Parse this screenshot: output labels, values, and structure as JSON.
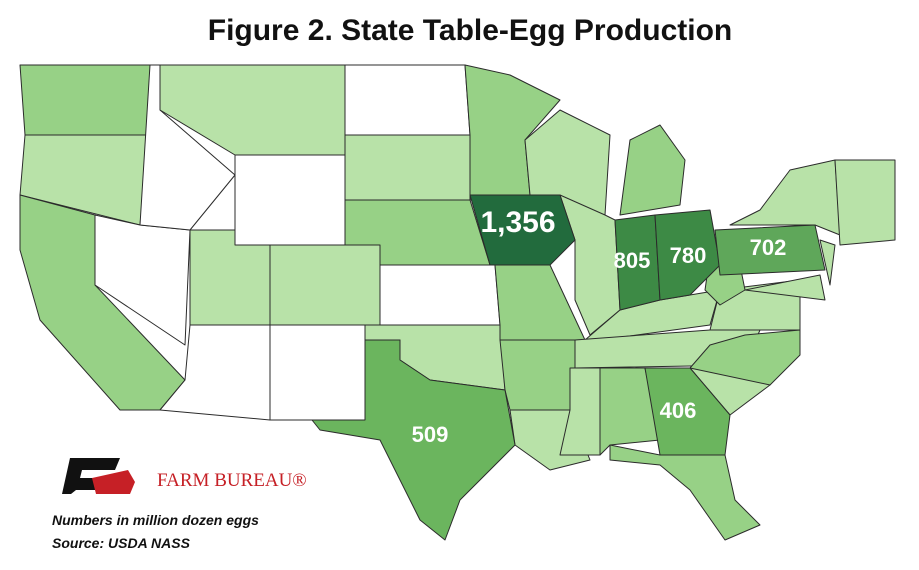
{
  "chart_data": {
    "type": "choropleth",
    "title": "Figure 2. State Table-Egg Production",
    "values": [
      1356,
      805,
      780,
      702,
      509,
      406
    ],
    "value_labels": [
      "1,356",
      "805",
      "780",
      "702",
      "509",
      "406"
    ],
    "colors": [
      "#226b3d",
      "#3d8a45",
      "#3d8a45",
      "#5fa75a",
      "#6bb55e",
      "#6bb55e"
    ],
    "note": "Numbers in million dozen eggs",
    "source": "Source: USDA NASS",
    "brand": "FARM BUREAU®"
  }
}
